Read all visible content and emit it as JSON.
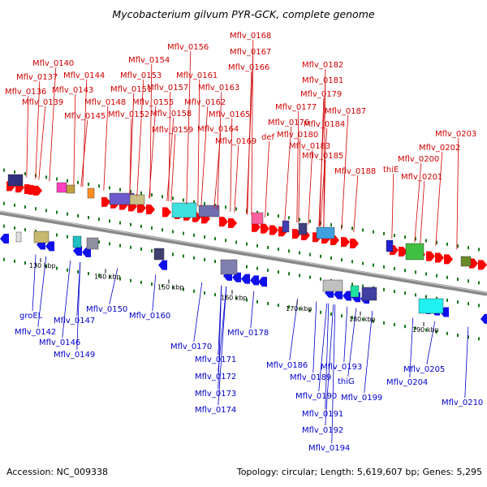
{
  "title": "Mycobacterium gilvum PYR-GCK, complete genome",
  "footer": {
    "accession": "Accession: NC_009338",
    "topology": "Topology: circular; Length: 5,619,607 bp; Genes: 5,295"
  },
  "colors": {
    "forward_label": "#d00000",
    "reverse_label": "#0000cc",
    "forward_gene": "#ff0000",
    "reverse_gene": "#1010ee",
    "backbone": "#888888",
    "tick": "#1a7a1a"
  },
  "scale_labels": [
    "130 kbp",
    "140 kbp",
    "150 kbp",
    "160 kbp",
    "170 kbp",
    "180 kbp",
    "190 kbp"
  ],
  "forward_labels": [
    "Mflv_0140",
    "Mflv_0137",
    "Mflv_0136",
    "Mflv_0139",
    "Mflv_0144",
    "Mflv_0143",
    "Mflv_0145",
    "Mflv_0148",
    "Mflv_0154",
    "Mflv_0153",
    "Mflv_0151",
    "Mflv_0152",
    "Mflv_0155",
    "Mflv_0156",
    "Mflv_0157",
    "Mflv_0158",
    "Mflv_0159",
    "Mflv_0161",
    "Mflv_0162",
    "Mflv_0163",
    "Mflv_0168",
    "Mflv_0167",
    "Mflv_0166",
    "Mflv_0165",
    "Mflv_0164",
    "Mflv_0169",
    "Mflv_0182",
    "Mflv_0181",
    "Mflv_0179",
    "Mflv_0177",
    "Mflv_0176",
    "def",
    "Mflv_0180",
    "Mflv_0184",
    "Mflv_0183",
    "Mflv_0185",
    "Mflv_0187",
    "Mflv_0188",
    "thiE",
    "Mflv_0200",
    "Mflv_0201",
    "Mflv_0203",
    "Mflv_0202"
  ],
  "reverse_labels": [
    "groEL",
    "Mflv_0142",
    "Mflv_0147",
    "Mflv_0146",
    "Mflv_0149",
    "Mflv_0150",
    "Mflv_0160",
    "Mflv_0170",
    "Mflv_0171",
    "Mflv_0172",
    "Mflv_0173",
    "Mflv_0174",
    "Mflv_0178",
    "Mflv_0186",
    "Mflv_0189",
    "Mflv_0190",
    "Mflv_0191",
    "Mflv_0192",
    "Mflv_0193",
    "thiG",
    "Mflv_0194",
    "Mflv_0199",
    "Mflv_0204",
    "Mflv_0205",
    "Mflv_0210"
  ]
}
